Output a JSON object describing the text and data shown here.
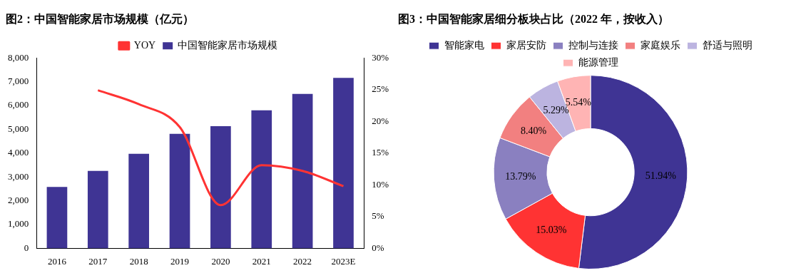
{
  "chart_data": [
    {
      "type": "bar",
      "title": "图2：中国智能家居市场规模（亿元）",
      "categories": [
        "2016",
        "2017",
        "2018",
        "2019",
        "2020",
        "2021",
        "2022",
        "2023E"
      ],
      "series": [
        {
          "name": "中国智能家居市场规模",
          "color": "#3f3494",
          "values": [
            2580,
            3250,
            3970,
            4810,
            5130,
            5800,
            6490,
            7160
          ]
        },
        {
          "name": "YOY",
          "type": "line",
          "axis": "y2",
          "color": "#ff3333",
          "values": [
            null,
            24.9,
            22.7,
            19.1,
            6.8,
            13.1,
            12.2,
            9.8
          ]
        }
      ],
      "ylim": [
        0,
        8000
      ],
      "yticks": [
        0,
        {
          "value": 1000,
          "label": "1,000"
        },
        {
          "value": 2000,
          "label": "2,000"
        },
        {
          "value": 3000,
          "label": "3,000"
        },
        {
          "value": 4000,
          "label": "4,000"
        },
        {
          "value": 5000,
          "label": "5,000"
        },
        {
          "value": 6000,
          "label": "6,000"
        },
        {
          "value": 7000,
          "label": "7,000"
        },
        {
          "value": 8000,
          "label": "8,000"
        }
      ],
      "y2lim": [
        0,
        30
      ],
      "y2ticks": [
        {
          "value": 0,
          "label": "0%"
        },
        {
          "value": 5,
          "label": "5%"
        },
        {
          "value": 10,
          "label": "10%"
        },
        {
          "value": 15,
          "label": "15%"
        },
        {
          "value": 20,
          "label": "20%"
        },
        {
          "value": 25,
          "label": "25%"
        },
        {
          "value": 30,
          "label": "30%"
        }
      ],
      "legend": "top",
      "grid": false,
      "marker": "none"
    },
    {
      "type": "donut",
      "title": "图3：中国智能家居细分板块占比（2022 年，按收入）",
      "categories": [
        "智能家电",
        "家居安防",
        "控制与连接",
        "家庭娱乐",
        "舒适与照明",
        "能源管理"
      ],
      "values": [
        51.94,
        15.03,
        13.79,
        8.4,
        5.29,
        5.54
      ],
      "colors": [
        "#3f3494",
        "#ff3333",
        "#8a80c0",
        "#f28080",
        "#bcb4e0",
        "#ffb4b4"
      ],
      "value_labels": [
        "51.94%",
        "15.03%",
        "13.79%",
        "8.40%",
        "5.29%",
        "5.54%"
      ],
      "legend": "top"
    }
  ]
}
